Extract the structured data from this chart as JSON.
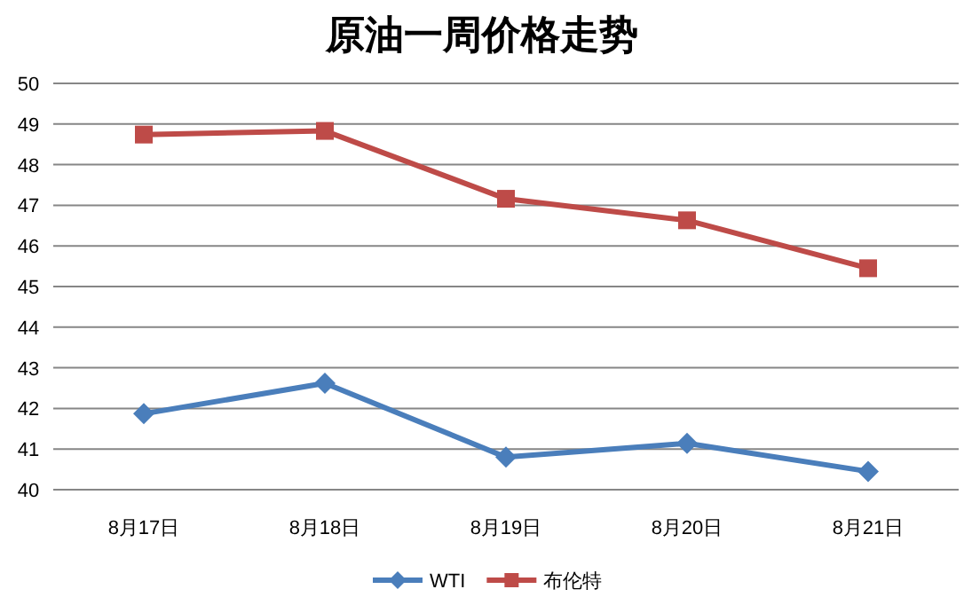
{
  "chart_data": {
    "type": "line",
    "title": "原油一周价格走势",
    "categories": [
      "8月17日",
      "8月18日",
      "8月19日",
      "8月20日",
      "8月21日"
    ],
    "series": [
      {
        "name": "WTI",
        "color": "#4a7ebb",
        "marker": "diamond",
        "values": [
          41.87,
          42.62,
          40.8,
          41.14,
          40.45
        ]
      },
      {
        "name": "布伦特",
        "color": "#be4b48",
        "marker": "square",
        "values": [
          48.74,
          48.83,
          47.16,
          46.63,
          45.45
        ]
      }
    ],
    "ylim": [
      40,
      50
    ],
    "yticks": [
      40,
      41,
      42,
      43,
      44,
      45,
      46,
      47,
      48,
      49,
      50
    ],
    "grid": "y",
    "legend": "bottom"
  }
}
